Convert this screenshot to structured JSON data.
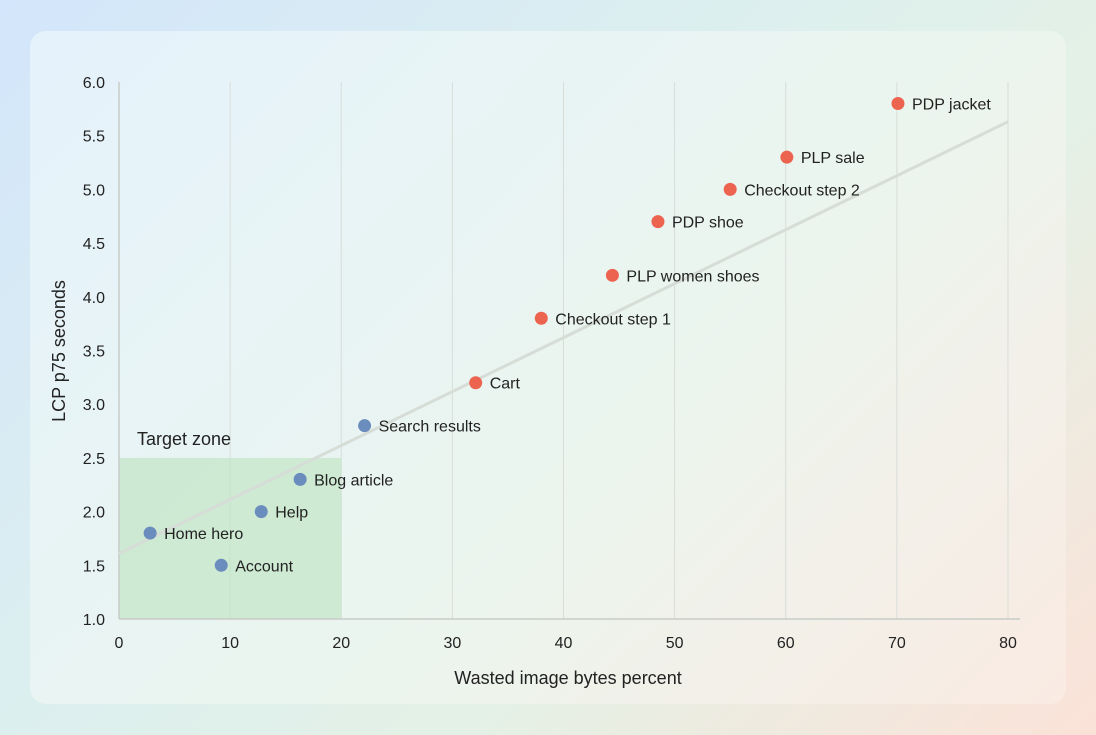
{
  "chart_data": {
    "type": "scatter",
    "title": "",
    "xlabel": "Wasted image bytes percent",
    "ylabel": "LCP p75 seconds",
    "xlim": [
      0,
      80
    ],
    "ylim": [
      1.0,
      6.0
    ],
    "x_ticks": [
      "0",
      "10",
      "20",
      "30",
      "40",
      "50",
      "60",
      "70",
      "80"
    ],
    "y_ticks": [
      "1.0",
      "1.5",
      "2.0",
      "2.5",
      "3.0",
      "3.5",
      "4.0",
      "4.5",
      "5.0",
      "5.5",
      "6.0"
    ],
    "grid": "vertical",
    "colors": {
      "in_target": "#6a8dbd",
      "out_of_target": "#ec6450",
      "zone": "#c4e6c8",
      "trend": "#d6dcd6"
    },
    "points": [
      {
        "label": "Home hero",
        "x": 2.8,
        "y": 1.8,
        "group": "in_target"
      },
      {
        "label": "Account",
        "x": 9.2,
        "y": 1.5,
        "group": "in_target"
      },
      {
        "label": "Help",
        "x": 12.8,
        "y": 2.0,
        "group": "in_target"
      },
      {
        "label": "Blog article",
        "x": 16.3,
        "y": 2.3,
        "group": "in_target"
      },
      {
        "label": "Search results",
        "x": 22.1,
        "y": 2.8,
        "group": "in_target"
      },
      {
        "label": "Cart",
        "x": 32.1,
        "y": 3.2,
        "group": "out_of_target"
      },
      {
        "label": "Checkout step 1",
        "x": 38.0,
        "y": 3.8,
        "group": "out_of_target"
      },
      {
        "label": "PLP women shoes",
        "x": 44.4,
        "y": 4.2,
        "group": "out_of_target"
      },
      {
        "label": "PDP shoe",
        "x": 48.5,
        "y": 4.7,
        "group": "out_of_target"
      },
      {
        "label": "Checkout step 2",
        "x": 55.0,
        "y": 5.0,
        "group": "out_of_target"
      },
      {
        "label": "PLP sale",
        "x": 60.1,
        "y": 5.3,
        "group": "out_of_target"
      },
      {
        "label": "PDP jacket",
        "x": 70.1,
        "y": 5.8,
        "group": "out_of_target"
      }
    ],
    "trendline": {
      "x": [
        0,
        80
      ],
      "y": [
        1.61,
        5.63
      ]
    },
    "zone": {
      "label": "Target zone",
      "x": [
        0,
        20
      ],
      "y": [
        1.0,
        2.5
      ]
    }
  }
}
